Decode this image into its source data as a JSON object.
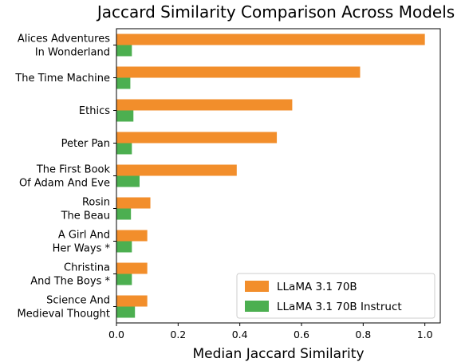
{
  "chart_data": {
    "type": "bar",
    "orientation": "horizontal",
    "title": "Jaccard Similarity Comparison Across Models",
    "xlabel": "Median Jaccard Similarity",
    "ylabel": "",
    "xlim": [
      0,
      1.05
    ],
    "x_ticks": [
      "0.0",
      "0.2",
      "0.4",
      "0.6",
      "0.8",
      "1.0"
    ],
    "grid": false,
    "legend_position": "bottom-right",
    "categories": [
      [
        "Alices Adventures",
        "In Wonderland"
      ],
      [
        "The Time Machine"
      ],
      [
        "Ethics"
      ],
      [
        "Peter Pan"
      ],
      [
        "The First Book",
        "Of Adam And Eve"
      ],
      [
        "Rosin",
        "The Beau"
      ],
      [
        "A Girl And",
        "Her Ways *"
      ],
      [
        "Christina",
        "And The Boys *"
      ],
      [
        "Science And",
        "Medieval Thought"
      ]
    ],
    "series": [
      {
        "name": "LLaMA 3.1 70B",
        "color": "#f28e2b",
        "values": [
          1.0,
          0.79,
          0.57,
          0.52,
          0.39,
          0.11,
          0.1,
          0.1,
          0.1
        ]
      },
      {
        "name": "LLaMA 3.1 70B Instruct",
        "color": "#4caf50",
        "values": [
          0.05,
          0.045,
          0.055,
          0.05,
          0.075,
          0.047,
          0.05,
          0.05,
          0.06
        ]
      }
    ]
  }
}
